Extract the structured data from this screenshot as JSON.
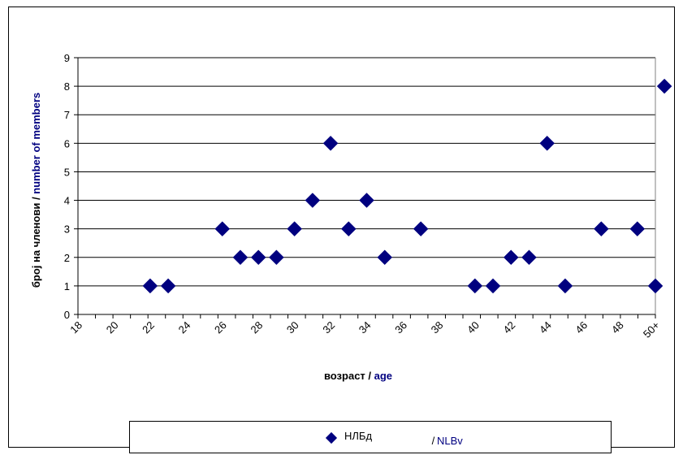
{
  "chart_data": {
    "type": "scatter",
    "title": "",
    "xlabel": {
      "local": "возраст / ",
      "english": "age"
    },
    "ylabel": {
      "local": "број на членови / ",
      "english": "number of members"
    },
    "x_tick_labels": [
      "18",
      "20",
      "22",
      "24",
      "26",
      "28",
      "30",
      "32",
      "34",
      "36",
      "38",
      "40",
      "42",
      "44",
      "46",
      "48",
      "50+"
    ],
    "ylim": [
      0,
      9
    ],
    "y_ticks": [
      0,
      1,
      2,
      3,
      4,
      5,
      6,
      7,
      8,
      9
    ],
    "grid": "horizontal",
    "legend_position": "bottom",
    "series": [
      {
        "name": "НЛБд",
        "name_suffix": " / ",
        "name_english": "NLBv",
        "color": "#00007f",
        "marker": "diamond",
        "x": [
          22,
          23,
          26,
          27,
          28,
          29,
          30,
          31,
          32,
          33,
          34,
          35,
          37,
          40,
          41,
          42,
          43,
          44,
          45,
          47,
          49,
          50,
          "50+"
        ],
        "y": [
          1,
          1,
          3,
          2,
          2,
          2,
          3,
          4,
          6,
          3,
          4,
          2,
          3,
          1,
          1,
          2,
          2,
          6,
          1,
          3,
          3,
          1,
          8
        ]
      }
    ]
  },
  "colors": {
    "marker": "#00007f",
    "english_text": "#000080",
    "gridline": "#000000",
    "plot_border": "#808080"
  }
}
